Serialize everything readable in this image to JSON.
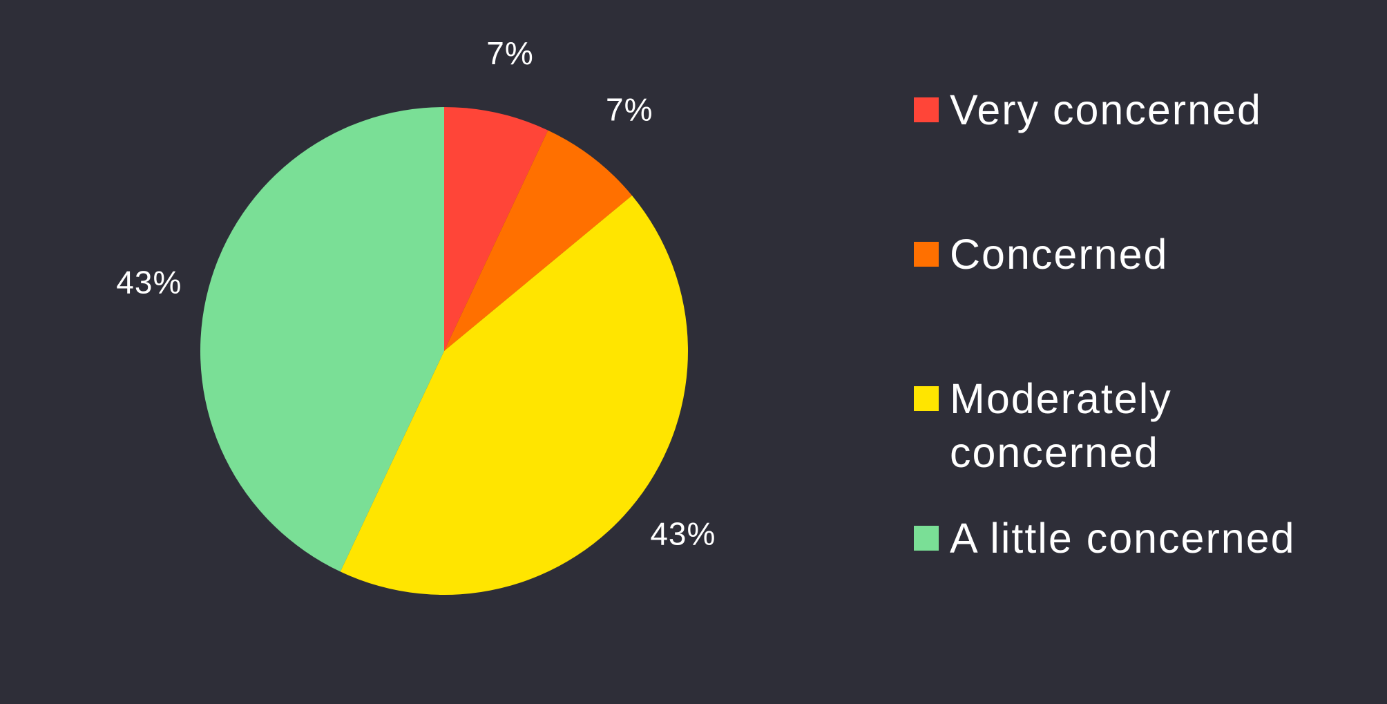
{
  "chart_data": {
    "type": "pie",
    "categories": [
      "Very concerned",
      "Concerned",
      "Moderately concerned",
      "A little concerned"
    ],
    "values": [
      7,
      7,
      43,
      43
    ],
    "value_labels": [
      "7%",
      "7%",
      "43%",
      "43%"
    ],
    "colors": [
      "#ff4538",
      "#ff7000",
      "#ffe500",
      "#7adf96"
    ],
    "legend": "right"
  }
}
